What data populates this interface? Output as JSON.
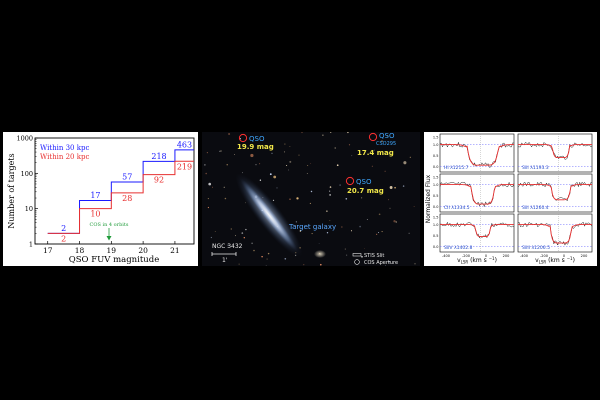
{
  "chart_data": {
    "type": "line",
    "xlabel": "QSO FUV magnitude",
    "ylabel": "Number of targets",
    "xlim": [
      16.6,
      21.6
    ],
    "ylim": [
      1,
      1000
    ],
    "yscale": "log",
    "xticks": [
      "17",
      "18",
      "19",
      "20",
      "21"
    ],
    "yticks": [
      "1",
      "10",
      "100",
      "1000"
    ],
    "legend_position": "top-left",
    "series": [
      {
        "name": "Within 30 kpc",
        "color": "#1a1aff",
        "x": [
          17,
          18,
          19,
          20,
          21
        ],
        "values": [
          2,
          17,
          57,
          218,
          463
        ],
        "labels": [
          "2",
          "17",
          "57",
          "218",
          "463"
        ]
      },
      {
        "name": "Within 20 kpc",
        "color": "#e83030",
        "x": [
          17,
          18,
          19,
          20,
          21
        ],
        "values": [
          2,
          10,
          28,
          92,
          219
        ],
        "labels": [
          "2",
          "10",
          "28",
          "92",
          "219"
        ]
      }
    ],
    "annotation": {
      "text": "COS in 4 orbits",
      "x": 18.75,
      "color": "#1f9b3a"
    }
  },
  "sky": {
    "qso_markers": [
      {
        "name": "QSO",
        "mag": "19.9 mag",
        "extra": ""
      },
      {
        "name": "QSO",
        "mag": "17.4 mag",
        "extra": "CSO295"
      },
      {
        "name": "QSO",
        "mag": "20.7 mag",
        "extra": ""
      }
    ],
    "target_label": "Target galaxy",
    "galaxy_label": "NGC 3432",
    "scale_label": "1'",
    "legend": {
      "stis": "STIS Slit",
      "cos": "COS Aperture"
    }
  },
  "spectra": {
    "ylabel": "Normalized Flux",
    "xlabel": "v",
    "xlabel_sub": "LSR",
    "xlabel_unit": "(km s",
    "xlabel_exp": "−1",
    "xlabel_close": ")",
    "ion_labels": [
      "HI  λ1215.7",
      "SiII  λ1193.3",
      "CII  λ1334.5",
      "SiII  λ1260.4",
      "SiIV  λ1402.8",
      "SiIII  λ1206.5"
    ],
    "yticks": [
      "1.5",
      "1.0",
      "0.5",
      "0.0"
    ],
    "xticks": [
      "-400",
      "-200",
      "0",
      "200"
    ],
    "colors": {
      "data": "#222222",
      "fit": "#e83030",
      "component": "#4da3ff",
      "dashed": "#6a6aff"
    }
  }
}
